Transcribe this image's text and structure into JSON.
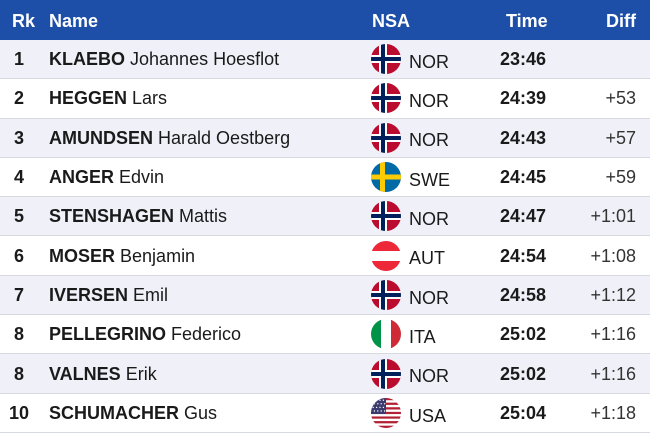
{
  "header": {
    "rank": "Rk",
    "name": "Name",
    "nsa": "NSA",
    "time": "Time",
    "diff": "Diff"
  },
  "results": [
    {
      "rank": "1",
      "last": "KLAEBO",
      "first": "Johannes Hoesflot",
      "nsa": "NOR",
      "flag": "norway-flag-icon",
      "time": "23:46",
      "diff": ""
    },
    {
      "rank": "2",
      "last": "HEGGEN",
      "first": "Lars",
      "nsa": "NOR",
      "flag": "norway-flag-icon",
      "time": "24:39",
      "diff": "+53"
    },
    {
      "rank": "3",
      "last": "AMUNDSEN",
      "first": "Harald Oestberg",
      "nsa": "NOR",
      "flag": "norway-flag-icon",
      "time": "24:43",
      "diff": "+57"
    },
    {
      "rank": "4",
      "last": "ANGER",
      "first": "Edvin",
      "nsa": "SWE",
      "flag": "sweden-flag-icon",
      "time": "24:45",
      "diff": "+59"
    },
    {
      "rank": "5",
      "last": "STENSHAGEN",
      "first": "Mattis",
      "nsa": "NOR",
      "flag": "norway-flag-icon",
      "time": "24:47",
      "diff": "+1:01"
    },
    {
      "rank": "6",
      "last": "MOSER",
      "first": "Benjamin",
      "nsa": "AUT",
      "flag": "austria-flag-icon",
      "time": "24:54",
      "diff": "+1:08"
    },
    {
      "rank": "7",
      "last": "IVERSEN",
      "first": "Emil",
      "nsa": "NOR",
      "flag": "norway-flag-icon",
      "time": "24:58",
      "diff": "+1:12"
    },
    {
      "rank": "8",
      "last": "PELLEGRINO",
      "first": "Federico",
      "nsa": "ITA",
      "flag": "italy-flag-icon",
      "time": "25:02",
      "diff": "+1:16"
    },
    {
      "rank": "8",
      "last": "VALNES",
      "first": "Erik",
      "nsa": "NOR",
      "flag": "norway-flag-icon",
      "time": "25:02",
      "diff": "+1:16"
    },
    {
      "rank": "10",
      "last": "SCHUMACHER",
      "first": "Gus",
      "nsa": "USA",
      "flag": "usa-flag-icon",
      "time": "25:04",
      "diff": "+1:18"
    }
  ],
  "colors": {
    "header_bg": "#1d4fa8",
    "header_text": "#ffffff",
    "row_alt_bg": "#f0f1f8",
    "row_bg": "#ffffff"
  }
}
